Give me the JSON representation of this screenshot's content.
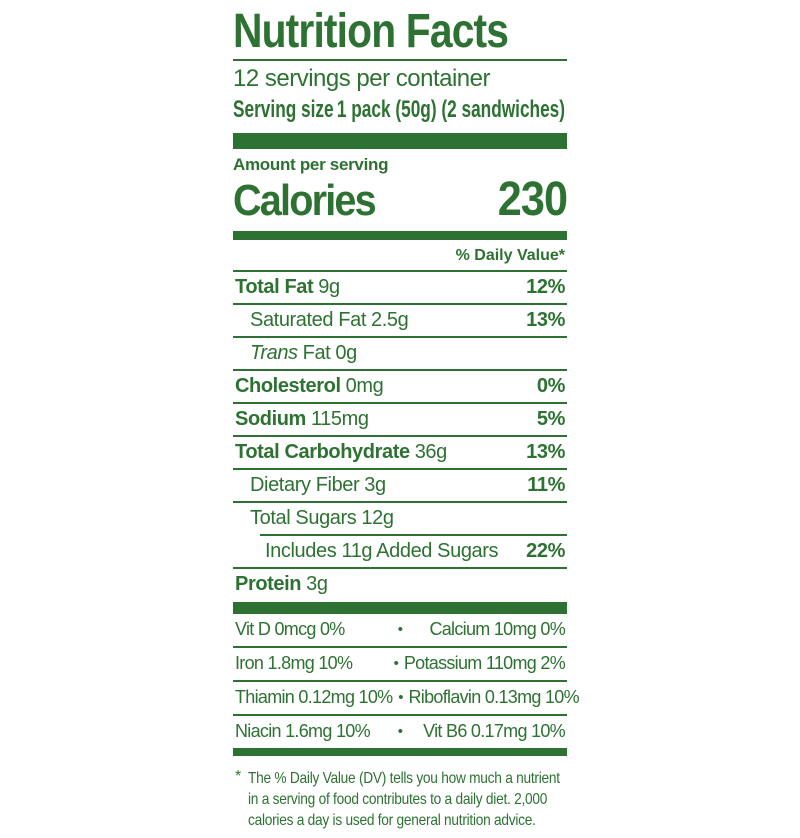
{
  "colors": {
    "green": "#2d7232",
    "background": "#ffffff"
  },
  "header": {
    "title": "Nutrition Facts",
    "servings_per_container": "12 servings per container",
    "serving_size_label": "Serving size",
    "serving_size_value": "1 pack (50g) (2 sandwiches)"
  },
  "calories": {
    "amount_per_serving_label": "Amount per serving",
    "label": "Calories",
    "value": "230"
  },
  "daily_value_header": "% Daily Value*",
  "rows": [
    {
      "name": "Total Fat",
      "amount": "9g",
      "dv": "12%"
    },
    {
      "name": "Saturated Fat",
      "amount": "2.5g",
      "dv": "13%"
    },
    {
      "name_italic": "Trans",
      "name": "Fat",
      "amount": "0g",
      "dv": ""
    },
    {
      "name": "Cholesterol",
      "amount": "0mg",
      "dv": "0%"
    },
    {
      "name": "Sodium",
      "amount": "115mg",
      "dv": "5%"
    },
    {
      "name": "Total Carbohydrate",
      "amount": "36g",
      "dv": "13%"
    },
    {
      "name": "Dietary Fiber",
      "amount": "3g",
      "dv": "11%"
    },
    {
      "name": "Total Sugars",
      "amount": "12g",
      "dv": ""
    },
    {
      "name": "Includes 11g Added Sugars",
      "amount": "",
      "dv": "22%"
    },
    {
      "name": "Protein",
      "amount": "3g",
      "dv": ""
    }
  ],
  "micronutrients": {
    "bullet": "•",
    "rows": [
      {
        "left": "Vit D 0mcg 0%",
        "right": "Calcium 10mg 0%"
      },
      {
        "left": "Iron 1.8mg 10%",
        "right": "Potassium 110mg 2%"
      },
      {
        "left": "Thiamin 0.12mg 10%",
        "right": "Riboflavin 0.13mg 10%"
      },
      {
        "left": "Niacin 1.6mg 10%",
        "right": "Vit B6 0.17mg 10%"
      }
    ]
  },
  "footnote": {
    "asterisk": "*",
    "lines": [
      "The % Daily Value (DV) tells you how much a nutrient",
      "in a serving of food contributes to a daily diet. 2,000",
      "calories a day is used for general nutrition advice."
    ]
  }
}
